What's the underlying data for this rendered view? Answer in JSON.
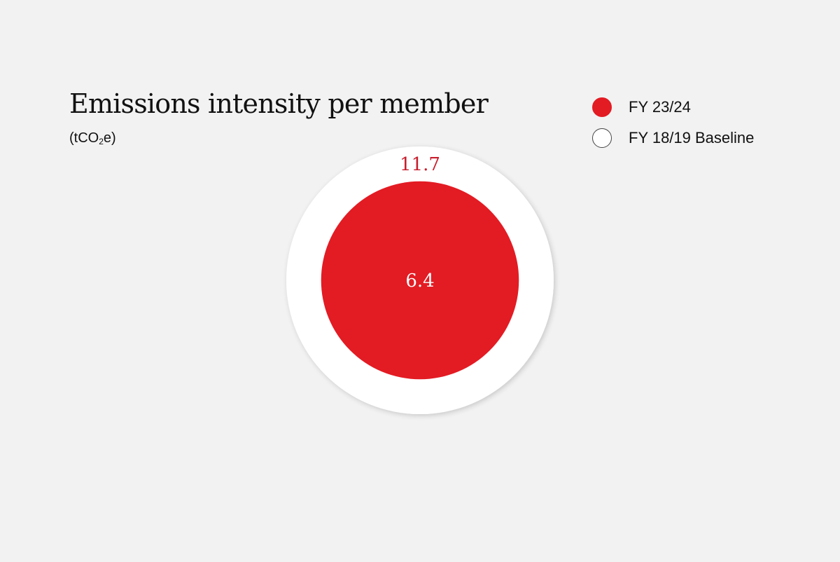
{
  "chart_data": {
    "type": "bubble",
    "title": "Emissions intensity per member",
    "subtitle_parts": [
      "(tCO",
      "2",
      "e)"
    ],
    "legend_position": "top-right",
    "series": [
      {
        "name": "FY 18/19 Baseline",
        "value": 11.7,
        "label": "11.7",
        "color": "#ffffff",
        "outline": "#444444",
        "label_color": "#c81d2c"
      },
      {
        "name": "FY 23/24",
        "value": 6.4,
        "label": "6.4",
        "color": "#e31b23",
        "outline": "#e31b23",
        "label_color": "#ffffff"
      }
    ],
    "legend": [
      {
        "name": "FY 23/24",
        "color": "#e31b23",
        "outline": "#e31b23"
      },
      {
        "name": "FY 18/19 Baseline",
        "color": "#ffffff",
        "outline": "#444444"
      }
    ]
  }
}
